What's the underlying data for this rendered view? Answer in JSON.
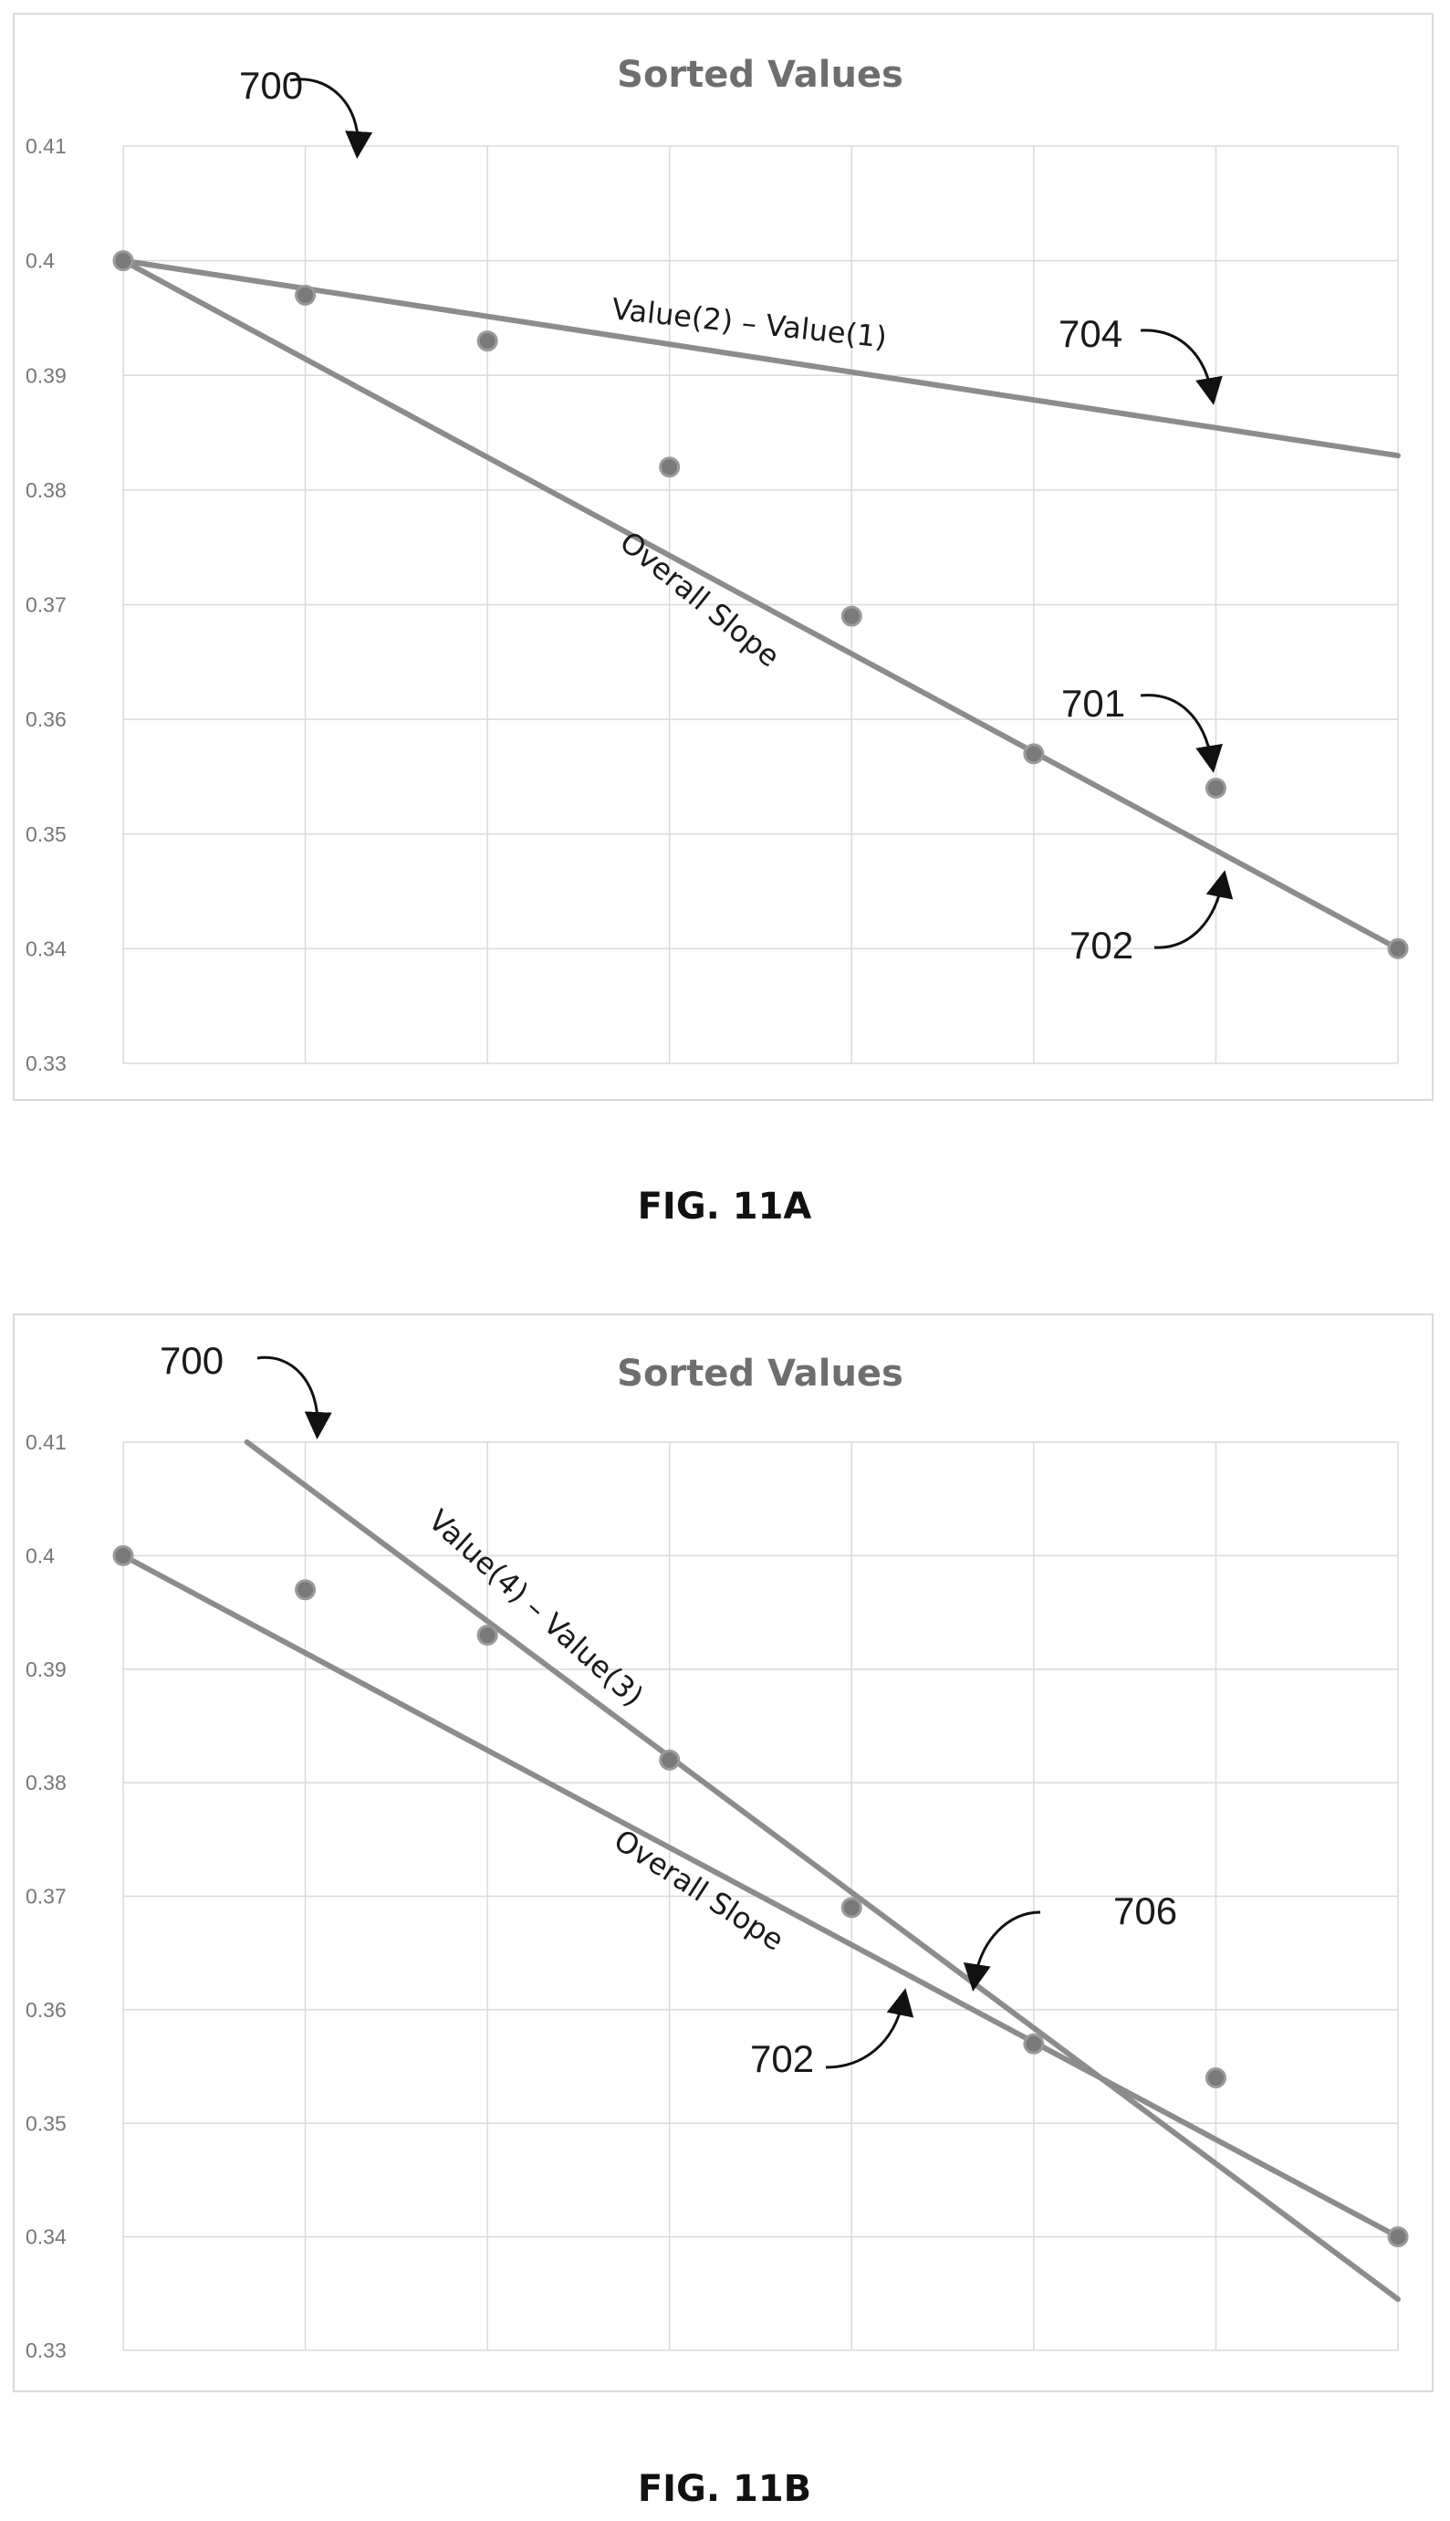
{
  "chart_data": [
    {
      "type": "scatter",
      "title": "Sorted Values",
      "caption": "FIG. 11A",
      "x": [
        1,
        2,
        3,
        4,
        5,
        6,
        7,
        8
      ],
      "values": [
        0.4,
        0.397,
        0.393,
        0.382,
        0.369,
        0.357,
        0.354,
        0.34
      ],
      "ylim": [
        0.33,
        0.41
      ],
      "xlim": [
        1,
        8
      ],
      "yticks": [
        "0.33",
        "0.34",
        "0.35",
        "0.36",
        "0.37",
        "0.38",
        "0.39",
        "0.4",
        "0.41"
      ],
      "grid": true,
      "lines": [
        {
          "label": "Value(2) – Value(1)",
          "x": [
            1,
            8
          ],
          "y": [
            0.4,
            0.383
          ]
        },
        {
          "label": "Overall Slope",
          "x": [
            1,
            8
          ],
          "y": [
            0.4,
            0.34
          ]
        }
      ],
      "callouts": [
        "700",
        "704",
        "701",
        "702"
      ]
    },
    {
      "type": "scatter",
      "title": "Sorted Values",
      "caption": "FIG. 11B",
      "x": [
        1,
        2,
        3,
        4,
        5,
        6,
        7,
        8
      ],
      "values": [
        0.4,
        0.397,
        0.393,
        0.382,
        0.369,
        0.357,
        0.354,
        0.34
      ],
      "ylim": [
        0.33,
        0.41
      ],
      "xlim": [
        1,
        8
      ],
      "yticks": [
        "0.33",
        "0.34",
        "0.35",
        "0.36",
        "0.37",
        "0.38",
        "0.39",
        "0.4",
        "0.41"
      ],
      "grid": true,
      "lines": [
        {
          "label": "Value(4) – Value(3)",
          "x": [
            1.68,
            8
          ],
          "y": [
            0.41,
            0.3345
          ]
        },
        {
          "label": "Overall Slope",
          "x": [
            1,
            8
          ],
          "y": [
            0.4,
            0.34
          ]
        }
      ],
      "callouts": [
        "700",
        "706",
        "702"
      ]
    }
  ]
}
